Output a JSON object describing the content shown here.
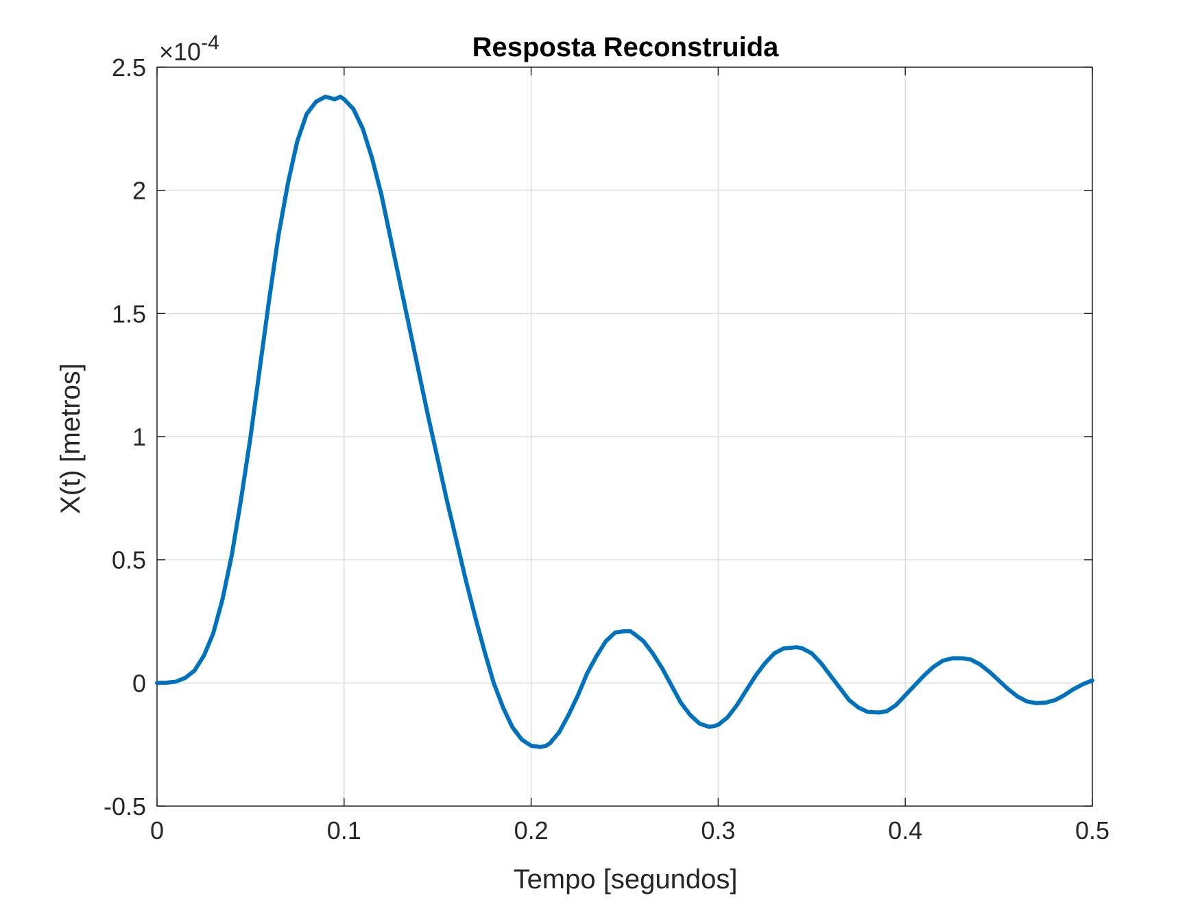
{
  "chart_data": {
    "type": "line",
    "title": "Resposta Reconstruida",
    "xlabel": "Tempo [segundos]",
    "ylabel": "X(t) [metros]",
    "y_exponent_label": "×10",
    "y_exponent_power": "-4",
    "xlim": [
      0,
      0.5
    ],
    "ylim": [
      -0.5,
      2.5
    ],
    "y_scale_factor": 0.0001,
    "grid": true,
    "x_ticks": [
      0,
      0.1,
      0.2,
      0.3,
      0.4,
      0.5
    ],
    "x_tick_labels": [
      "0",
      "0.1",
      "0.2",
      "0.3",
      "0.4",
      "0.5"
    ],
    "y_ticks": [
      -0.5,
      0,
      0.5,
      1,
      1.5,
      2,
      2.5
    ],
    "y_tick_labels": [
      "-0.5",
      "0",
      "0.5",
      "1",
      "1.5",
      "2",
      "2.5"
    ],
    "series": [
      {
        "color": "#0072bd",
        "x": [
          0,
          0.005,
          0.01,
          0.015,
          0.02,
          0.025,
          0.03,
          0.035,
          0.04,
          0.045,
          0.05,
          0.055,
          0.06,
          0.065,
          0.07,
          0.075,
          0.08,
          0.085,
          0.09,
          0.095,
          0.098,
          0.1,
          0.105,
          0.11,
          0.115,
          0.12,
          0.125,
          0.13,
          0.135,
          0.14,
          0.145,
          0.15,
          0.155,
          0.16,
          0.165,
          0.17,
          0.175,
          0.18,
          0.185,
          0.19,
          0.195,
          0.2,
          0.205,
          0.208,
          0.21,
          0.215,
          0.22,
          0.225,
          0.23,
          0.235,
          0.24,
          0.245,
          0.25,
          0.253,
          0.255,
          0.26,
          0.265,
          0.27,
          0.275,
          0.28,
          0.285,
          0.29,
          0.295,
          0.298,
          0.3,
          0.305,
          0.31,
          0.315,
          0.32,
          0.325,
          0.33,
          0.335,
          0.342,
          0.345,
          0.35,
          0.355,
          0.36,
          0.365,
          0.37,
          0.375,
          0.38,
          0.386,
          0.39,
          0.395,
          0.4,
          0.405,
          0.41,
          0.415,
          0.42,
          0.425,
          0.431,
          0.435,
          0.44,
          0.445,
          0.45,
          0.455,
          0.46,
          0.465,
          0.47,
          0.475,
          0.48,
          0.485,
          0.49,
          0.495,
          0.5
        ],
        "y": [
          0,
          0.001,
          0.005,
          0.02,
          0.05,
          0.11,
          0.2,
          0.34,
          0.52,
          0.75,
          1.0,
          1.28,
          1.56,
          1.82,
          2.03,
          2.2,
          2.31,
          2.36,
          2.38,
          2.37,
          2.38,
          2.37,
          2.33,
          2.25,
          2.13,
          1.98,
          1.8,
          1.62,
          1.44,
          1.26,
          1.08,
          0.91,
          0.74,
          0.58,
          0.42,
          0.27,
          0.13,
          0.0,
          -0.1,
          -0.18,
          -0.23,
          -0.255,
          -0.26,
          -0.255,
          -0.245,
          -0.2,
          -0.13,
          -0.05,
          0.04,
          0.11,
          0.17,
          0.205,
          0.21,
          0.21,
          0.2,
          0.17,
          0.12,
          0.06,
          -0.01,
          -0.08,
          -0.13,
          -0.165,
          -0.178,
          -0.175,
          -0.17,
          -0.14,
          -0.09,
          -0.03,
          0.03,
          0.08,
          0.12,
          0.14,
          0.145,
          0.14,
          0.12,
          0.08,
          0.03,
          -0.02,
          -0.07,
          -0.1,
          -0.118,
          -0.12,
          -0.115,
          -0.09,
          -0.05,
          -0.01,
          0.03,
          0.065,
          0.09,
          0.1,
          0.1,
          0.095,
          0.075,
          0.045,
          0.01,
          -0.025,
          -0.055,
          -0.075,
          -0.082,
          -0.08,
          -0.07,
          -0.05,
          -0.025,
          -0.005,
          0.01
        ]
      }
    ]
  }
}
